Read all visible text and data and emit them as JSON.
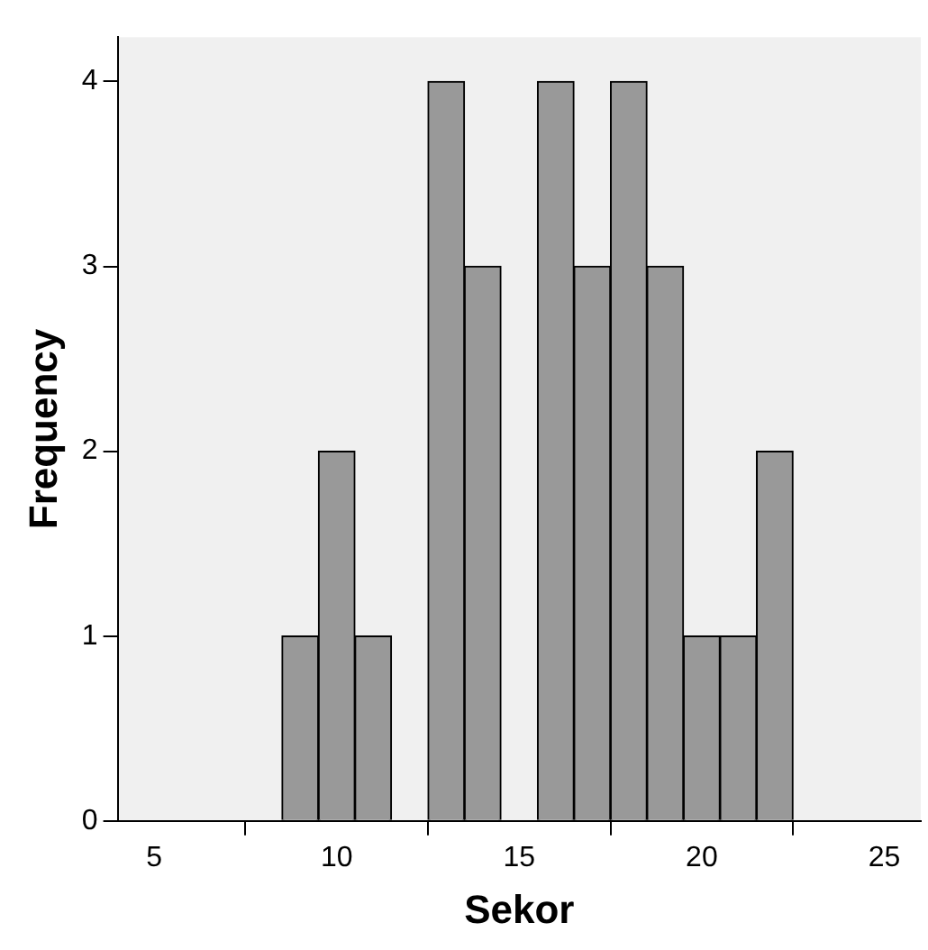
{
  "chart_data": {
    "type": "histogram",
    "xlabel": "Sekor",
    "ylabel": "Frequency",
    "bins": [
      8.5,
      9.5,
      10.5,
      11.5,
      12.5,
      13.5,
      14.5,
      15.5,
      16.5,
      17.5,
      18.5,
      19.5,
      20.5,
      21.5,
      22.5
    ],
    "values": [
      1,
      2,
      1,
      0,
      4,
      3,
      0,
      4,
      3,
      4,
      3,
      1,
      1,
      2
    ],
    "color": "#999999",
    "xlim": [
      4,
      26
    ],
    "xticks": [
      5,
      10,
      15,
      20,
      25
    ],
    "ylim": [
      0,
      4.24
    ],
    "yticks": [
      0,
      1,
      2,
      3,
      4
    ],
    "grid": false,
    "legend": false
  }
}
